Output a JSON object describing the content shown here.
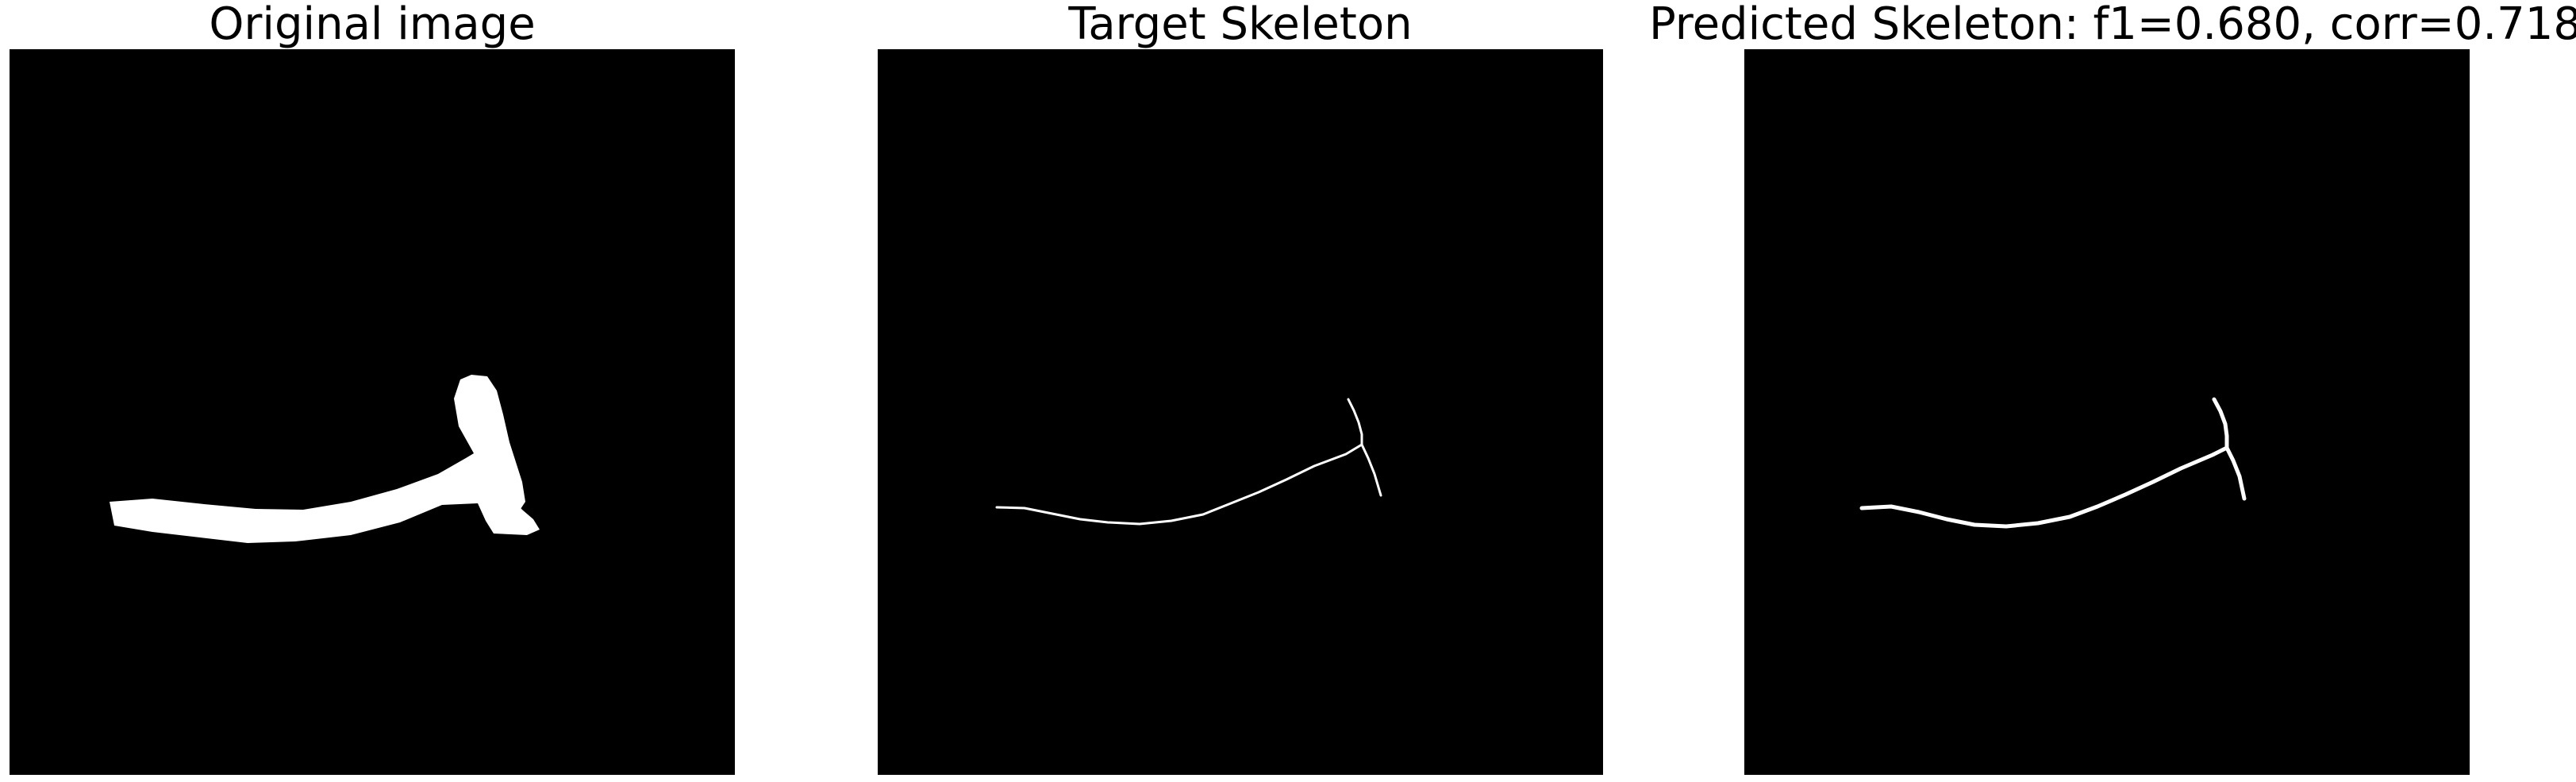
{
  "panels": [
    {
      "title": "Original image",
      "content": "binary-stroke"
    },
    {
      "title": "Target Skeleton",
      "content": "skeleton"
    },
    {
      "title": "Predicted Skeleton: f1=0.680, corr=0.718",
      "content": "skeleton"
    }
  ],
  "colors": {
    "background": "#000000",
    "foreground": "#ffffff",
    "title_text": "#000000"
  }
}
